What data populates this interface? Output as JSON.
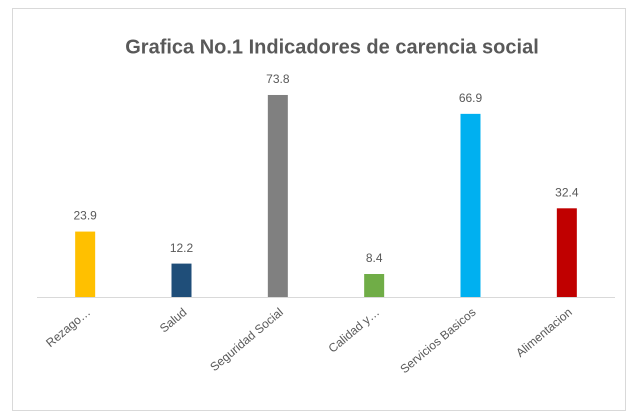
{
  "chart_data": {
    "type": "bar",
    "title": "Grafica No.1 Indicadores de carencia social",
    "categories": [
      "Rezago…",
      "Salud",
      "Seguridad Social",
      "Calidad y…",
      "Servicios Basicos",
      "Alimentacion"
    ],
    "values": [
      23.9,
      12.2,
      73.8,
      8.4,
      66.9,
      32.4
    ],
    "colors": [
      "#ffc000",
      "#1f4e79",
      "#808080",
      "#70ad47",
      "#00b0f0",
      "#c00000"
    ],
    "ylim": [
      0,
      80
    ]
  }
}
